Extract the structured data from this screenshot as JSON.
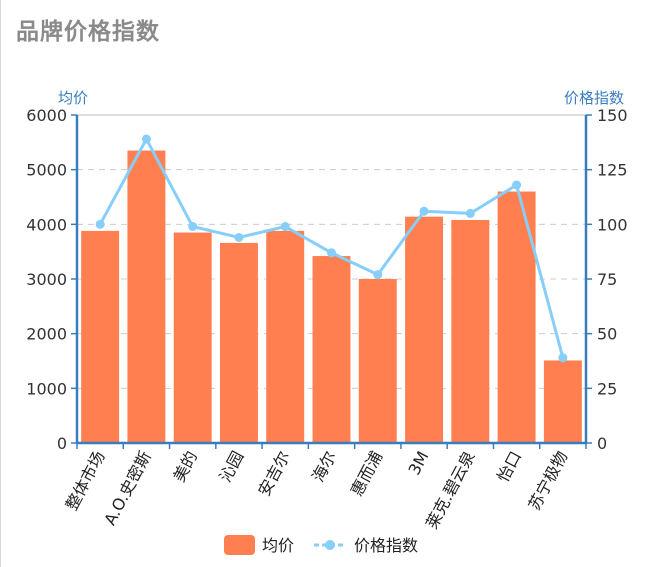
{
  "title": "品牌价格指数",
  "colors": {
    "bar": "#FF7F50",
    "line": "#87CEFA",
    "axis": "#3a7dbf",
    "grid": "#cccccc"
  },
  "chart_data": {
    "type": "bar",
    "title": "品牌价格指数",
    "categories": [
      "整体市场",
      "A.O.史密斯",
      "美的",
      "沁园",
      "安吉尔",
      "海尔",
      "惠而浦",
      "3M",
      "莱克.碧云泉",
      "怡口",
      "苏宁极物"
    ],
    "series": [
      {
        "name": "均价",
        "type": "bar",
        "axis": "left",
        "values": [
          3880,
          5350,
          3850,
          3660,
          3880,
          3420,
          3000,
          4140,
          4080,
          4600,
          1510
        ]
      },
      {
        "name": "价格指数",
        "type": "line",
        "axis": "right",
        "values": [
          100,
          139,
          99,
          94,
          99,
          87,
          77,
          106,
          105,
          118,
          39
        ]
      }
    ],
    "y_left": {
      "label": "均价",
      "min": 0,
      "max": 6000,
      "ticks": [
        0,
        1000,
        2000,
        3000,
        4000,
        5000,
        6000
      ]
    },
    "y_right": {
      "label": "价格指数",
      "min": 0,
      "max": 150,
      "ticks": [
        0,
        25,
        50,
        75,
        100,
        125,
        150
      ]
    },
    "grid": true,
    "legend": {
      "position": "bottom-center",
      "items": [
        "均价",
        "价格指数"
      ]
    }
  }
}
